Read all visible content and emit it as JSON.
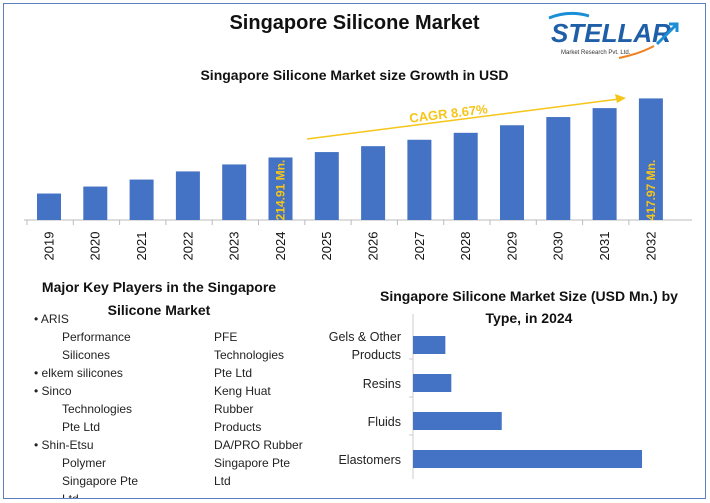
{
  "title": "Singapore Silicone Market",
  "logo": {
    "name": "STELLAR",
    "tagline": "Market Research Pvt. Ltd."
  },
  "chart_data": [
    {
      "type": "bar",
      "title": "Singapore Silicone Market size Growth in USD",
      "categories": [
        "2019",
        "2020",
        "2021",
        "2022",
        "2023",
        "2024",
        "2025",
        "2026",
        "2027",
        "2028",
        "2029",
        "2030",
        "2031",
        "2032"
      ],
      "values": [
        91,
        115,
        139,
        167,
        191,
        214.91,
        233.5,
        253.8,
        275.8,
        299.7,
        325.7,
        353.9,
        384.6,
        417.97
      ],
      "ylim": [
        0,
        440
      ],
      "xlabel": "",
      "ylabel": "",
      "annotations": {
        "cagr": "CAGR 8.67%",
        "label_2024": "214.91 Mn.",
        "label_2032": "417.97 Mn."
      },
      "bar_color": "#4472c4",
      "annotation_color": "#f5c518",
      "grid": false
    },
    {
      "type": "bar",
      "orientation": "horizontal",
      "title": "Singapore Silicone Market Size (USD Mn.) by Type, in 2024",
      "title_lines": [
        "Singapore Silicone Market Size (USD Mn.) by",
        "Type, in 2024"
      ],
      "categories": [
        "Gels & Other Products",
        "Resins",
        "Fluids",
        "Elastomers"
      ],
      "category_lines": [
        [
          "Gels & Other",
          "Products"
        ],
        [
          "Resins"
        ],
        [
          "Fluids"
        ],
        [
          "Elastomers"
        ]
      ],
      "values": [
        17.9,
        21.2,
        49.1,
        126.7
      ],
      "bar_color": "#4472c4"
    }
  ],
  "key_players": {
    "title_lines": [
      "Major Key Players in the Singapore",
      "Silicone Market"
    ],
    "col1": [
      [
        "ARIS",
        "Performance",
        "Silicones"
      ],
      [
        "elkem silicones"
      ],
      [
        "Sinco",
        "Technologies",
        "Pte Ltd"
      ],
      [
        "Shin-Etsu",
        "Polymer",
        "Singapore Pte",
        "Ltd"
      ]
    ],
    "col2": [
      "PFE",
      "Technologies",
      "Pte Ltd",
      "Keng Huat",
      "Rubber",
      "Products",
      "DA/PRO Rubber",
      "Singapore Pte",
      "Ltd"
    ]
  }
}
